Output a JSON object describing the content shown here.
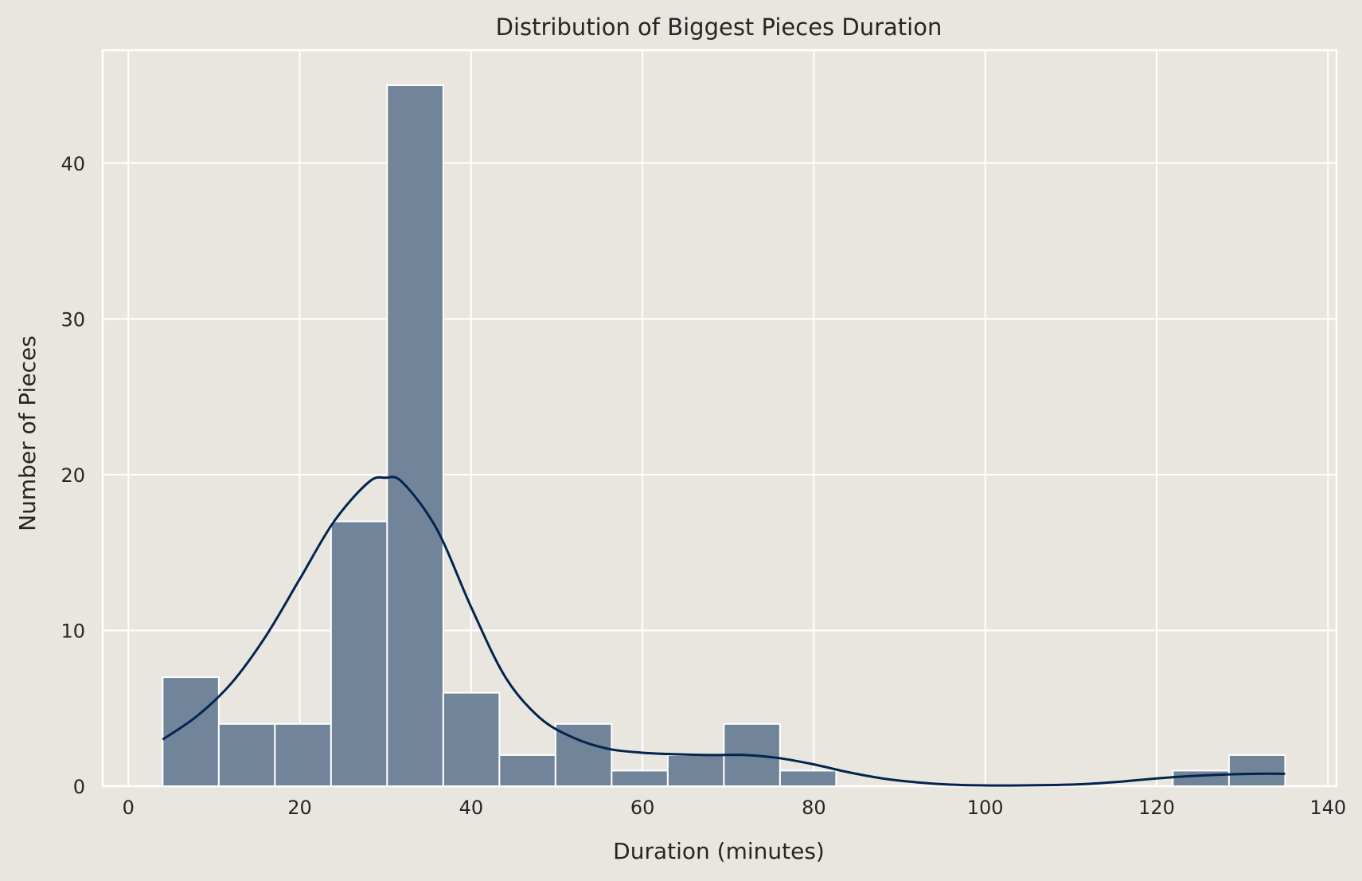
{
  "chart_data": {
    "type": "bar",
    "title": "Distribution of Biggest Pieces Duration",
    "xlabel": "Duration (minutes)",
    "ylabel": "Number of Pieces",
    "xlim": [
      -3,
      141
    ],
    "ylim": [
      0,
      47.25
    ],
    "x_ticks": [
      0,
      20,
      40,
      60,
      80,
      100,
      120,
      140
    ],
    "y_ticks": [
      0,
      10,
      20,
      30,
      40
    ],
    "grid": true,
    "bin_edges": [
      4.0,
      10.55,
      17.1,
      23.65,
      30.2,
      36.75,
      43.3,
      49.85,
      56.4,
      62.95,
      69.5,
      76.05,
      82.6,
      89.15,
      95.7,
      102.25,
      108.8,
      115.35,
      121.9,
      128.45,
      135.0
    ],
    "values": [
      7,
      4,
      4,
      17,
      45,
      6,
      2,
      4,
      1,
      2,
      4,
      1,
      0,
      0,
      0,
      0,
      0,
      0,
      1,
      2
    ],
    "kde": {
      "x": [
        4,
        8,
        12,
        16,
        20,
        24,
        28,
        30,
        32,
        36,
        40,
        44,
        48,
        52,
        56,
        60,
        64,
        68,
        72,
        76,
        80,
        84,
        88,
        92,
        96,
        100,
        104,
        108,
        112,
        116,
        120,
        124,
        128,
        132,
        135
      ],
      "y": [
        3.0,
        4.5,
        6.6,
        9.6,
        13.3,
        17.0,
        19.5,
        19.8,
        19.5,
        16.5,
        11.5,
        7.0,
        4.4,
        3.1,
        2.4,
        2.15,
        2.05,
        2.0,
        2.0,
        1.8,
        1.4,
        0.9,
        0.5,
        0.25,
        0.1,
        0.05,
        0.05,
        0.08,
        0.15,
        0.3,
        0.5,
        0.65,
        0.75,
        0.8,
        0.8
      ]
    },
    "colors": {
      "background": "#e8e6df",
      "grid": "#ffffff",
      "bar_fill": "#71849a",
      "bar_edge": "#ffffff",
      "kde_line": "#03244d"
    }
  }
}
